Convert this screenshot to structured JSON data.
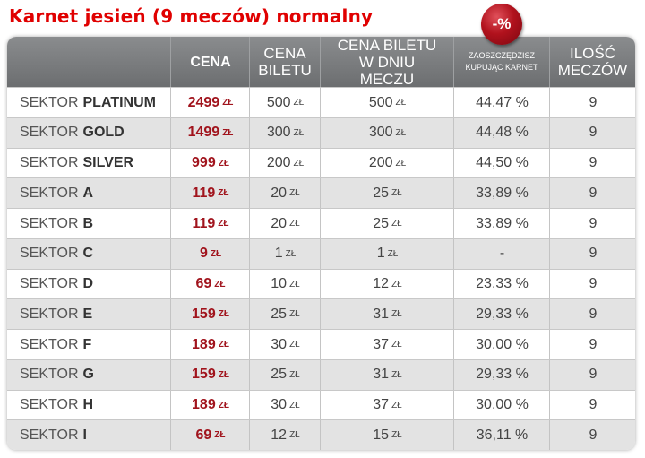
{
  "title": "Karnet jesień (9 meczów) normalny",
  "badge": "-%",
  "header": {
    "sector": "",
    "price": "CENA",
    "ticket_price": "CENA BILETU",
    "matchday_price": "CENA BILETU W DNIU MECZU",
    "savings": "ZAOSZCZĘDZISZ KUPUJĄC KARNET",
    "matches": "ILOŚĆ MECZÓW"
  },
  "sector_word": "SEKTOR",
  "currency": "ZŁ",
  "rows": [
    {
      "sector": "PLATINUM",
      "price": "2499",
      "ticket": "500",
      "matchday": "500",
      "savings": "44,47 %",
      "matches": "9"
    },
    {
      "sector": "GOLD",
      "price": "1499",
      "ticket": "300",
      "matchday": "300",
      "savings": "44,48 %",
      "matches": "9"
    },
    {
      "sector": "SILVER",
      "price": "999",
      "ticket": "200",
      "matchday": "200",
      "savings": "44,50 %",
      "matches": "9"
    },
    {
      "sector": "A",
      "price": "119",
      "ticket": "20",
      "matchday": "25",
      "savings": "33,89 %",
      "matches": "9"
    },
    {
      "sector": "B",
      "price": "119",
      "ticket": "20",
      "matchday": "25",
      "savings": "33,89 %",
      "matches": "9"
    },
    {
      "sector": "C",
      "price": "9",
      "ticket": "1",
      "matchday": "1",
      "savings": "-",
      "matches": "9"
    },
    {
      "sector": "D",
      "price": "69",
      "ticket": "10",
      "matchday": "12",
      "savings": "23,33 %",
      "matches": "9"
    },
    {
      "sector": "E",
      "price": "159",
      "ticket": "25",
      "matchday": "31",
      "savings": "29,33 %",
      "matches": "9"
    },
    {
      "sector": "F",
      "price": "189",
      "ticket": "30",
      "matchday": "37",
      "savings": "30,00 %",
      "matches": "9"
    },
    {
      "sector": "G",
      "price": "159",
      "ticket": "25",
      "matchday": "31",
      "savings": "29,33 %",
      "matches": "9"
    },
    {
      "sector": "H",
      "price": "189",
      "ticket": "30",
      "matchday": "37",
      "savings": "30,00 %",
      "matches": "9"
    },
    {
      "sector": "I",
      "price": "69",
      "ticket": "12",
      "matchday": "15",
      "savings": "36,11 %",
      "matches": "9"
    }
  ]
}
